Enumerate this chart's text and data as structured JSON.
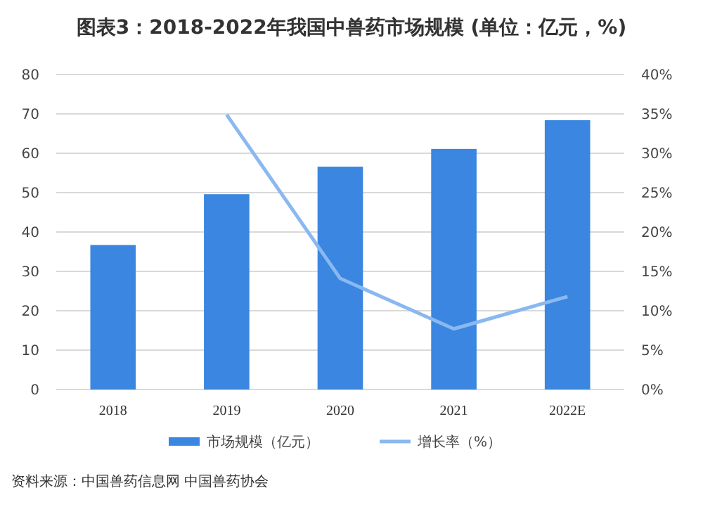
{
  "chart_data": {
    "type": "bar",
    "title": "图表3：2018-2022年我国中兽药市场规模 (单位：亿元，%)",
    "categories": [
      "2018",
      "2019",
      "2020",
      "2021",
      "2022E"
    ],
    "series": [
      {
        "name": "市场规模（亿元）",
        "color": "#3a86e0",
        "values": [
          36.7,
          49.6,
          56.6,
          61.1,
          68.4
        ]
      },
      {
        "name": "增长率（%）",
        "type": "line",
        "axis": "y2",
        "color": "#8ab8f0",
        "values": [
          null,
          34.9,
          14.1,
          7.7,
          11.8
        ]
      }
    ],
    "ylim": [
      0,
      80
    ],
    "yticks": [
      0,
      10,
      20,
      30,
      40,
      50,
      60,
      70,
      80
    ],
    "y2lim": [
      0,
      40
    ],
    "y2ticks": [
      {
        "value": 0,
        "label": "0%"
      },
      {
        "value": 5,
        "label": "5%"
      },
      {
        "value": 10,
        "label": "10%"
      },
      {
        "value": 15,
        "label": "15%"
      },
      {
        "value": 20,
        "label": "20%"
      },
      {
        "value": 25,
        "label": "25%"
      },
      {
        "value": 30,
        "label": "30%"
      },
      {
        "value": 35,
        "label": "35%"
      },
      {
        "value": 40,
        "label": "40%"
      }
    ],
    "grid": "y",
    "legend": "bottom",
    "marker": "none",
    "line_style": "solid",
    "annotations": [
      "资料来源：中国兽药信息网 中国兽药协会"
    ]
  }
}
